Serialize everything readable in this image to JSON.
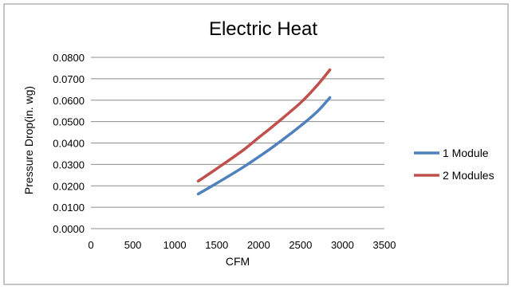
{
  "chart_data": {
    "type": "line",
    "title": "Electric Heat",
    "xlabel": "CFM",
    "ylabel": "Pressure Drop(in. wg)",
    "xlim": [
      0,
      3500
    ],
    "ylim": [
      0,
      0.08
    ],
    "x_ticks": [
      "0",
      "500",
      "1000",
      "1500",
      "2000",
      "2500",
      "3000",
      "3500"
    ],
    "y_ticks": [
      "0.0000",
      "0.0100",
      "0.0200",
      "0.0300",
      "0.0400",
      "0.0500",
      "0.0600",
      "0.0700",
      "0.0800"
    ],
    "grid": "horizontal",
    "legend_position": "right",
    "series": [
      {
        "name": "1 Module",
        "color": "#4f81bd",
        "x": [
          1280,
          1500,
          1800,
          2000,
          2200,
          2500,
          2700,
          2850
        ],
        "y": [
          0.0162,
          0.0212,
          0.0283,
          0.0335,
          0.039,
          0.048,
          0.0547,
          0.0612
        ]
      },
      {
        "name": "2 Modules",
        "color": "#c0504d",
        "x": [
          1280,
          1500,
          1800,
          2000,
          2200,
          2500,
          2700,
          2850
        ],
        "y": [
          0.0222,
          0.028,
          0.0362,
          0.0425,
          0.0488,
          0.0588,
          0.067,
          0.0742
        ]
      }
    ]
  }
}
